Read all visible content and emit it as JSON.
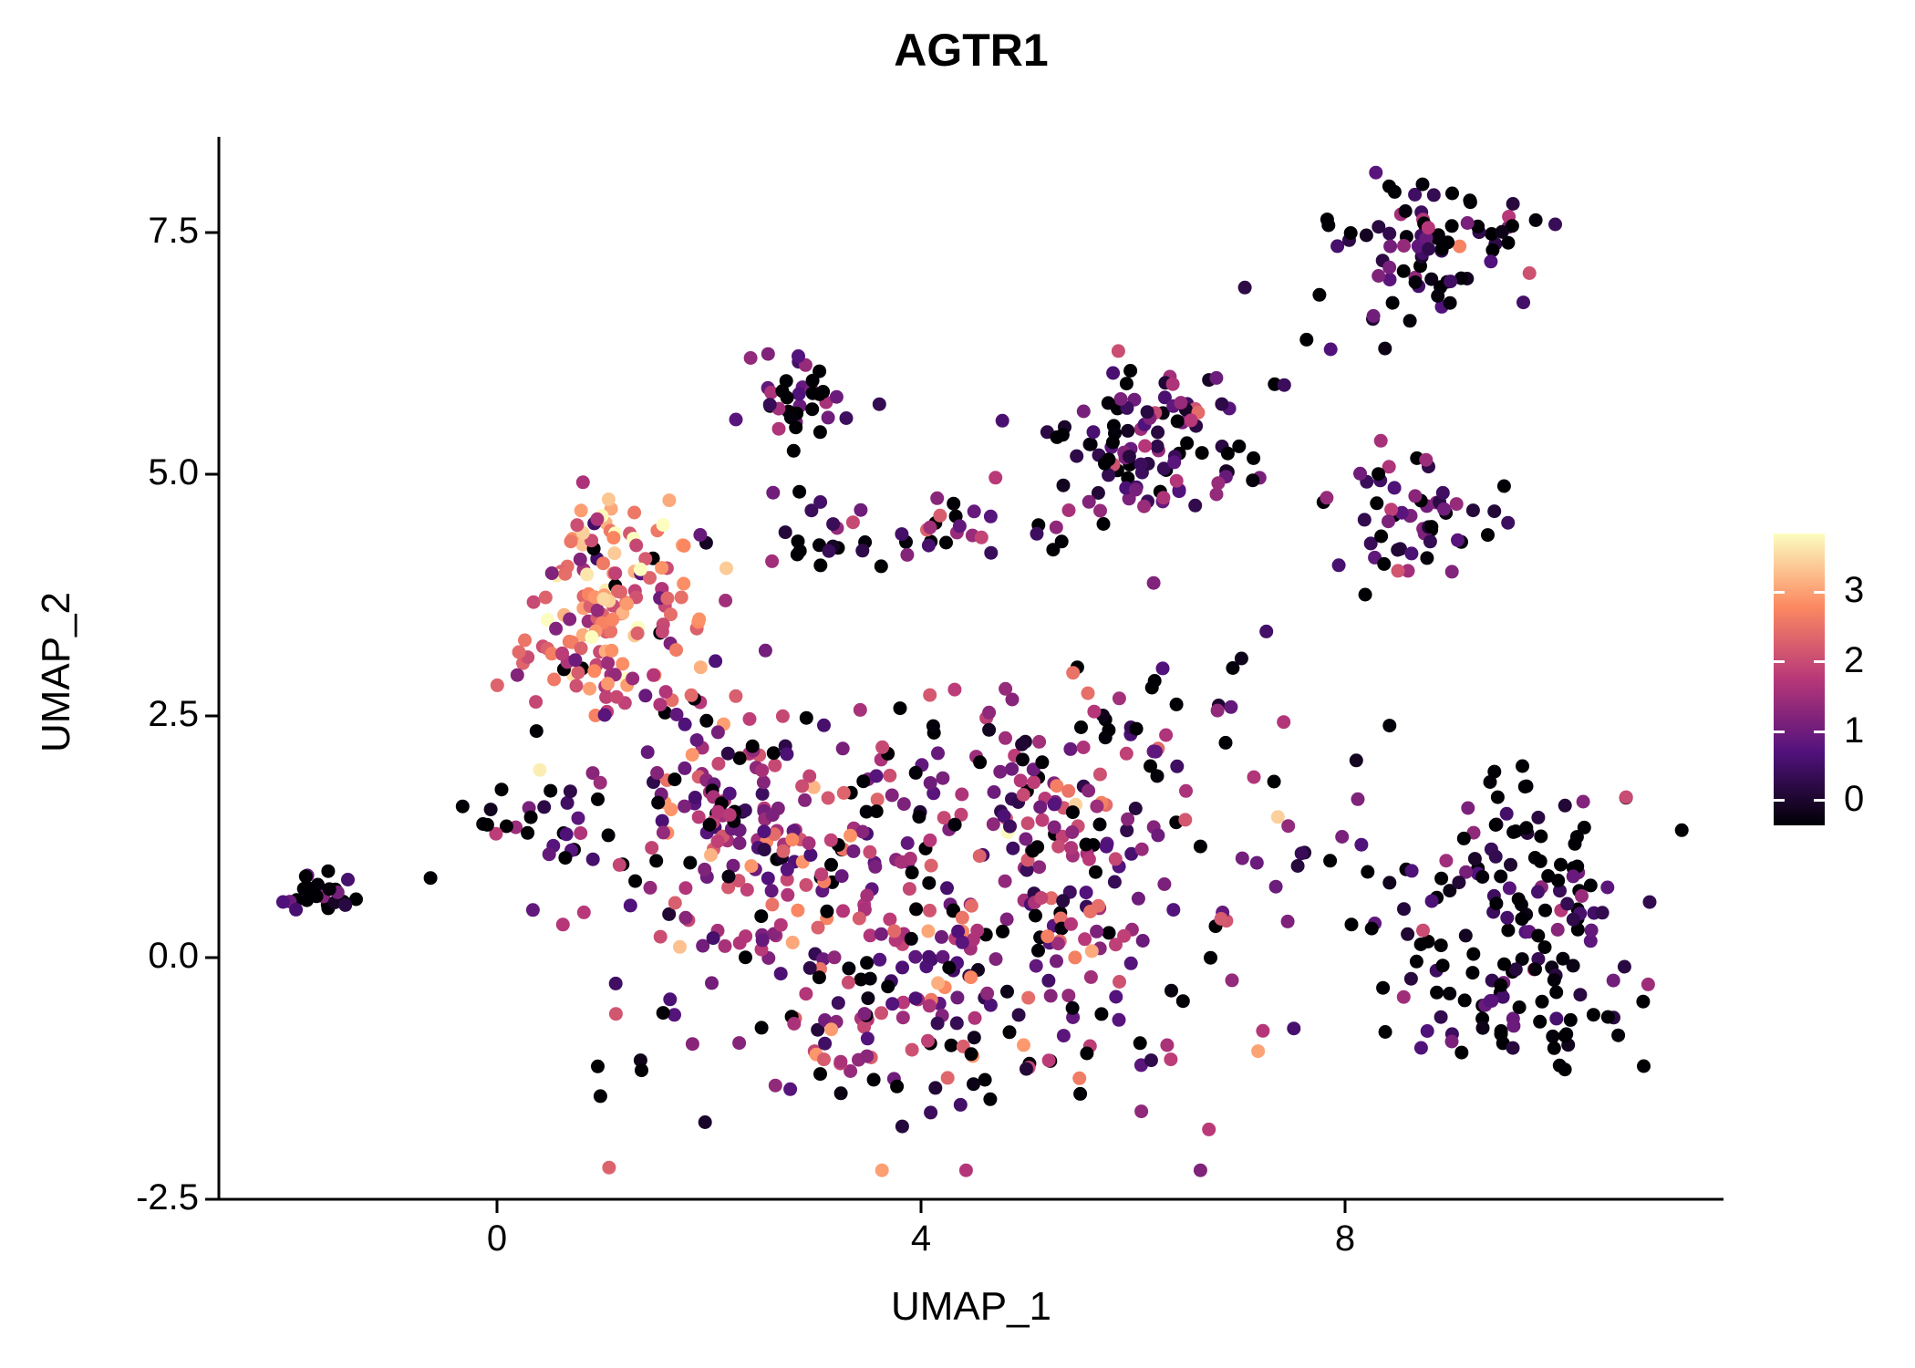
{
  "colors": {
    "background": "#ffffff",
    "axis": "#000000",
    "text": "#000000"
  },
  "chart_data": {
    "type": "scatter",
    "title": "AGTR1",
    "xlabel": "UMAP_1",
    "ylabel": "UMAP_2",
    "xlim": [
      -2.6,
      11.6
    ],
    "ylim": [
      -2.5,
      8.5
    ],
    "grid": false,
    "x_ticks": [
      {
        "v": 0,
        "label": "0"
      },
      {
        "v": 4,
        "label": "4"
      },
      {
        "v": 8,
        "label": "8"
      }
    ],
    "y_ticks": [
      {
        "v": -2.5,
        "label": "-2.5"
      },
      {
        "v": 0.0,
        "label": "0.0"
      },
      {
        "v": 2.5,
        "label": "2.5"
      },
      {
        "v": 5.0,
        "label": "5.0"
      },
      {
        "v": 7.5,
        "label": "7.5"
      }
    ],
    "legend": {
      "position": "right",
      "labels": [
        "3",
        "2",
        "1",
        "0"
      ],
      "fractions": [
        0.2,
        0.44,
        0.68,
        0.915
      ],
      "vmin": 0,
      "vmax": 3.5,
      "colormap_name": "magma"
    },
    "colormap": [
      {
        "t": 0.0,
        "hex": "#000004"
      },
      {
        "t": 0.25,
        "hex": "#51127c"
      },
      {
        "t": 0.5,
        "hex": "#b73779"
      },
      {
        "t": 0.75,
        "hex": "#fc8961"
      },
      {
        "t": 1.0,
        "hex": "#fcfdbf"
      }
    ],
    "point_radius_px": 7.5,
    "seed": 7,
    "clusters": [
      {
        "name": "far-left",
        "cx": -1.62,
        "cy": 0.65,
        "sx": 0.16,
        "sy": 0.12,
        "n": 26,
        "mean": 0.5,
        "sd": 0.5,
        "zero_p": 0.5
      },
      {
        "name": "far-left-dot",
        "cx": -0.62,
        "cy": 0.82,
        "sx": 0.02,
        "sy": 0.02,
        "n": 1,
        "mean": 0.0,
        "sd": 0.0,
        "zero_p": 1.0
      },
      {
        "name": "left-warm-core",
        "cx": 1.15,
        "cy": 3.85,
        "sx": 0.42,
        "sy": 0.5,
        "n": 120,
        "mean": 2.4,
        "sd": 0.65,
        "zero_p": 0.04
      },
      {
        "name": "left-warm-fringe",
        "cx": 1.0,
        "cy": 2.9,
        "sx": 0.5,
        "sy": 0.35,
        "n": 40,
        "mean": 2.0,
        "sd": 0.7,
        "zero_p": 0.08
      },
      {
        "name": "left-mid-tail",
        "cx": 1.95,
        "cy": 2.1,
        "sx": 0.35,
        "sy": 0.5,
        "n": 45,
        "mean": 1.6,
        "sd": 0.8,
        "zero_p": 0.12
      },
      {
        "name": "left-small",
        "cx": 0.55,
        "cy": 1.35,
        "sx": 0.3,
        "sy": 0.22,
        "n": 28,
        "mean": 0.9,
        "sd": 0.7,
        "zero_p": 0.3
      },
      {
        "name": "top-mid",
        "cx": 2.85,
        "cy": 5.75,
        "sx": 0.22,
        "sy": 0.28,
        "n": 38,
        "mean": 0.9,
        "sd": 0.6,
        "zero_p": 0.3
      },
      {
        "name": "mid-band",
        "cx": 3.2,
        "cy": 4.35,
        "sx": 0.5,
        "sy": 0.18,
        "n": 26,
        "mean": 0.8,
        "sd": 0.7,
        "zero_p": 0.35
      },
      {
        "name": "mid-band-2",
        "cx": 4.55,
        "cy": 4.4,
        "sx": 0.45,
        "sy": 0.2,
        "n": 22,
        "mean": 1.3,
        "sd": 0.8,
        "zero_p": 0.2
      },
      {
        "name": "top-right-main",
        "cx": 6.2,
        "cy": 5.35,
        "sx": 0.45,
        "sy": 0.45,
        "n": 105,
        "mean": 0.9,
        "sd": 0.55,
        "zero_p": 0.2
      },
      {
        "name": "right-mid",
        "cx": 8.6,
        "cy": 4.45,
        "sx": 0.38,
        "sy": 0.35,
        "n": 55,
        "mean": 1.0,
        "sd": 0.6,
        "zero_p": 0.2
      },
      {
        "name": "top-far-right",
        "cx": 8.75,
        "cy": 7.4,
        "sx": 0.5,
        "sy": 0.32,
        "n": 80,
        "mean": 0.8,
        "sd": 0.7,
        "zero_p": 0.35
      },
      {
        "name": "top-right-straggler",
        "cx": 7.9,
        "cy": 6.5,
        "sx": 0.4,
        "sy": 0.3,
        "n": 6,
        "mean": 0.8,
        "sd": 0.5,
        "zero_p": 0.3
      },
      {
        "name": "central-mass",
        "cx": 4.2,
        "cy": 0.3,
        "sx": 1.45,
        "sy": 1.05,
        "n": 430,
        "mean": 1.4,
        "sd": 0.75,
        "zero_p": 0.14
      },
      {
        "name": "central-upper",
        "cx": 5.7,
        "cy": 2.1,
        "sx": 0.85,
        "sy": 0.55,
        "n": 75,
        "mean": 1.1,
        "sd": 0.7,
        "zero_p": 0.2
      },
      {
        "name": "central-left-bridge",
        "cx": 2.3,
        "cy": 1.2,
        "sx": 0.5,
        "sy": 0.5,
        "n": 50,
        "mean": 1.3,
        "sd": 0.8,
        "zero_p": 0.15
      },
      {
        "name": "bottom-right",
        "cx": 9.6,
        "cy": 0.35,
        "sx": 0.62,
        "sy": 0.75,
        "n": 170,
        "mean": 0.65,
        "sd": 0.6,
        "zero_p": 0.4
      },
      {
        "name": "right-bridge",
        "cx": 7.8,
        "cy": 0.8,
        "sx": 0.35,
        "sy": 0.5,
        "n": 10,
        "mean": 0.8,
        "sd": 0.6,
        "zero_p": 0.3
      }
    ]
  }
}
